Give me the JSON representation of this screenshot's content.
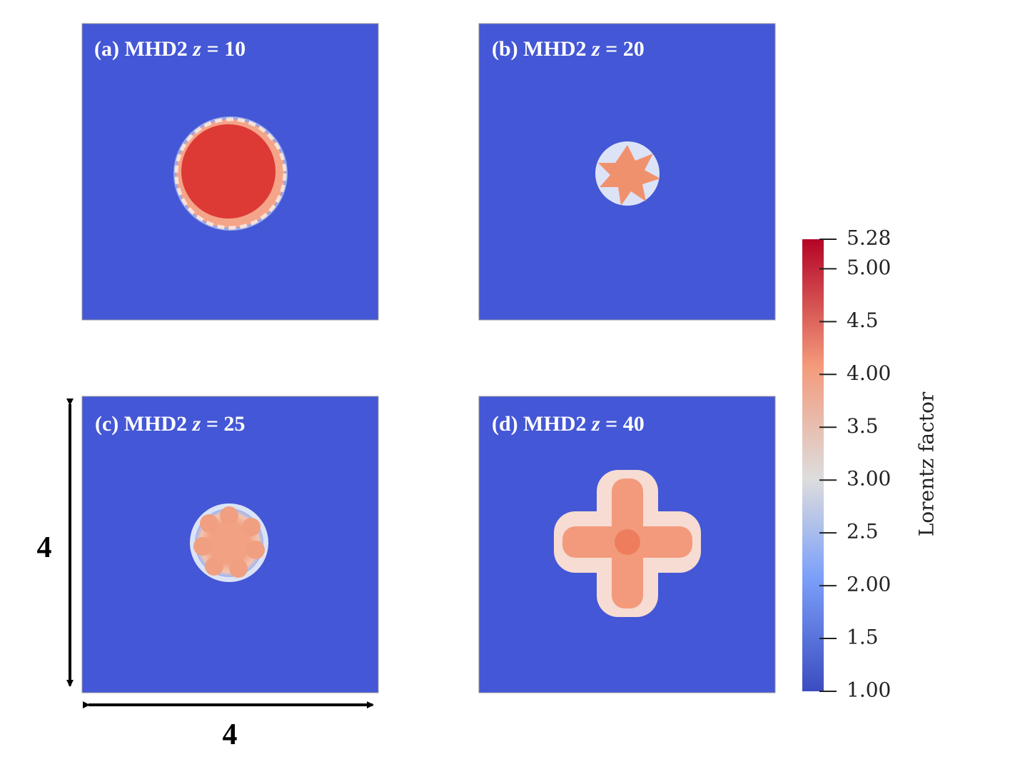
{
  "panels": [
    {
      "label": "(a) MHD2",
      "variable": "z",
      "value_text": "= 10"
    },
    {
      "label": "(b) MHD2",
      "variable": "z",
      "value_text": "= 20"
    },
    {
      "label": "(c) MHD2",
      "variable": "z",
      "value_text": "= 25"
    },
    {
      "label": "(d) MHD2",
      "variable": "z",
      "value_text": "= 40"
    }
  ],
  "colorbar": {
    "label": "Lorentz factor",
    "lim": [
      1,
      5.28
    ],
    "ticks": [
      5.28,
      {
        "value": 5,
        "label": "5.00"
      },
      4.5,
      {
        "value": 4,
        "label": "4.00"
      },
      3.5,
      {
        "value": 3,
        "label": "3.00"
      },
      2.5,
      {
        "value": 2,
        "label": "2.00"
      },
      1.5,
      {
        "value": 1,
        "label": "1.00"
      }
    ]
  },
  "dimensions": {
    "height": "4",
    "width": "4"
  }
}
